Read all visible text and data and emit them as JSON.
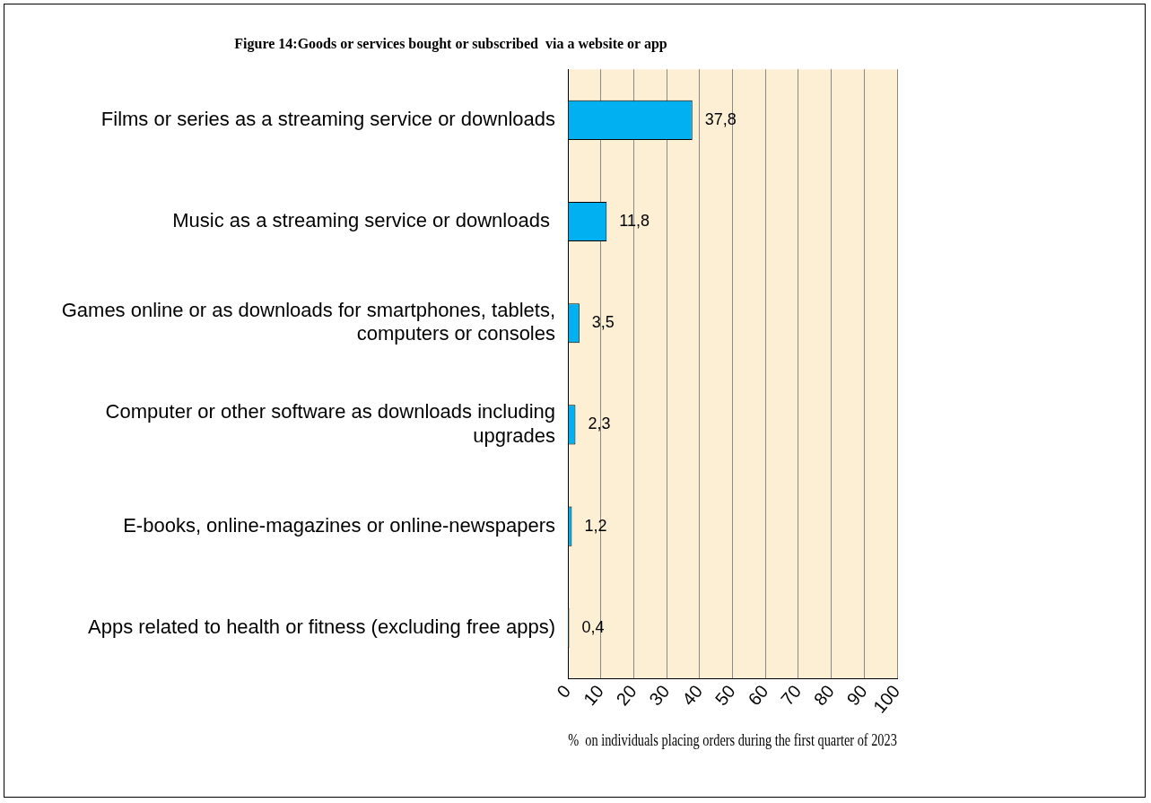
{
  "chart_data": {
    "type": "bar",
    "orientation": "horizontal",
    "title": "Figure 14:Goods or services bought or subscribed  via a website or app",
    "xlabel": "%  on individuals placing orders during the first quarter of 2023",
    "categories": [
      "Films or series as a streaming service or downloads",
      "Music as a streaming service or downloads ",
      "Games online or as downloads for smartphones, tablets, computers or consoles",
      "Computer or other software as downloads including upgrades",
      "E-books, online-magazines or online-newspapers",
      "Apps related to health or fitness (excluding free apps)"
    ],
    "values": [
      37.8,
      11.8,
      3.5,
      2.3,
      1.2,
      0.4
    ],
    "value_labels": [
      "37,8",
      "11,8",
      "3,5",
      "2,3",
      "1,2",
      "0,4"
    ],
    "color": "#00b0f0",
    "xlim": [
      0,
      100
    ],
    "xticks": [
      0,
      10,
      20,
      30,
      40,
      50,
      60,
      70,
      80,
      90,
      100
    ],
    "grid": "x",
    "legend": false
  }
}
